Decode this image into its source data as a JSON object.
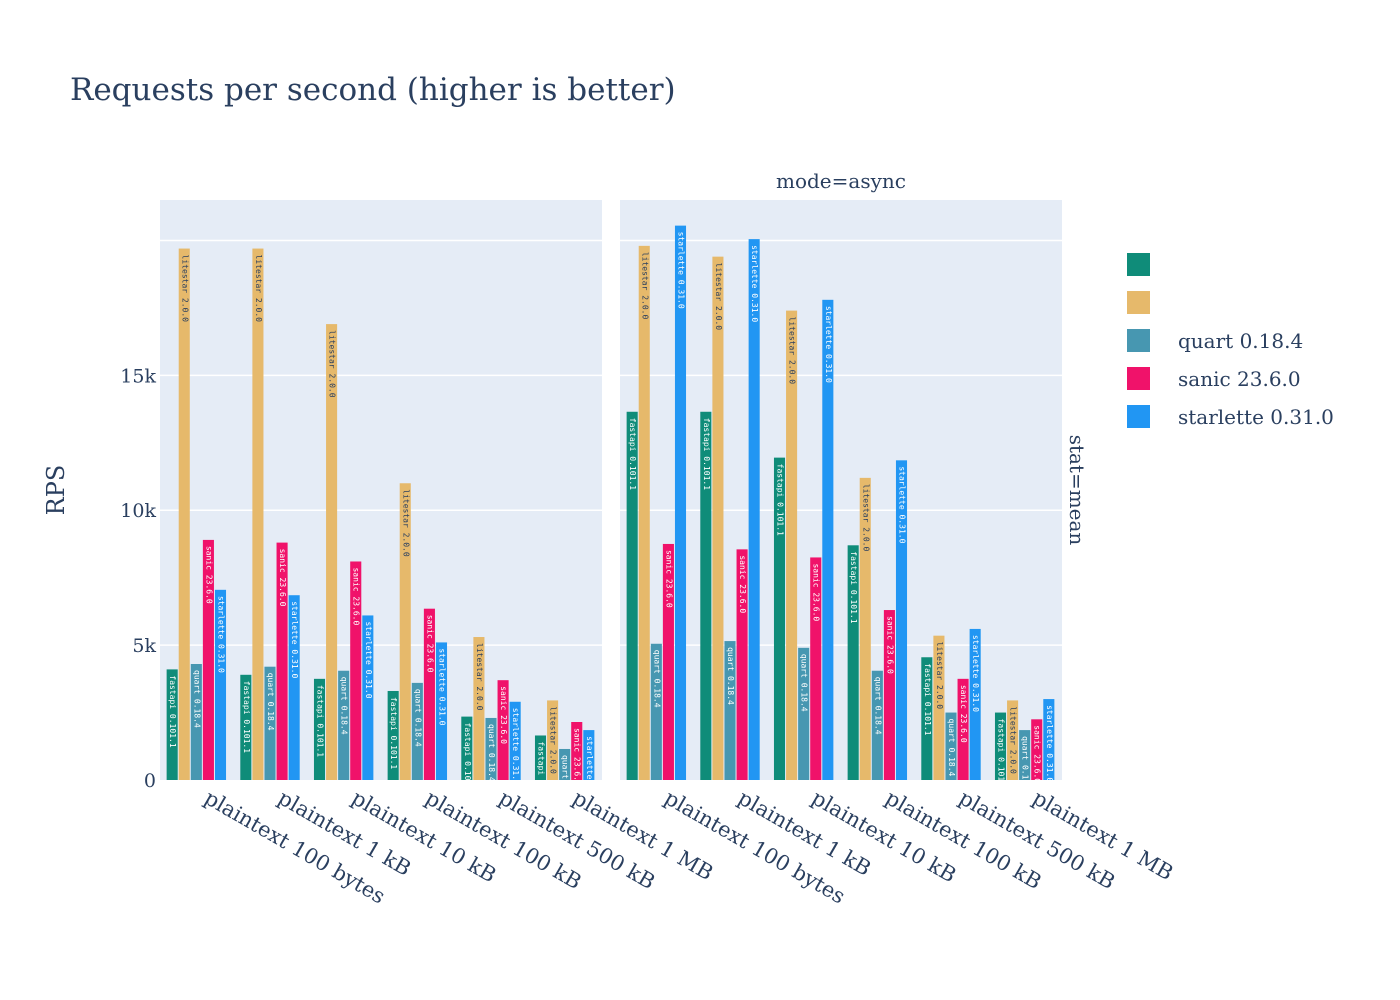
{
  "chart_data": {
    "type": "bar",
    "title": "Requests per second (higher is better)",
    "ylabel": "RPS",
    "xlabel": "",
    "ylim": [
      0,
      21500
    ],
    "yticks": [
      {
        "value": 0,
        "label": "0"
      },
      {
        "value": 5000,
        "label": "5k"
      },
      {
        "value": 10000,
        "label": "10k"
      },
      {
        "value": 15000,
        "label": "15k"
      }
    ],
    "row_facet": "stat=mean",
    "legend_position": "right",
    "series": [
      {
        "name": "fastapi 0.101.1",
        "color": "#0f8c79"
      },
      {
        "name": "litestar 2.0.0",
        "color": "#e6b96b"
      },
      {
        "name": "quart 0.18.4",
        "color": "#4797b1"
      },
      {
        "name": "sanic 23.6.0",
        "color": "#f0126a"
      },
      {
        "name": "starlette 0.31.0",
        "color": "#2196f3"
      }
    ],
    "legend_labels": [
      "",
      "",
      "quart 0.18.4",
      "sanic 23.6.0",
      "starlette 0.31.0"
    ],
    "facets": [
      {
        "title": "",
        "categories": [
          "plaintext 100 bytes",
          "plaintext 1 kB",
          "plaintext 10 kB",
          "plaintext 100 kB",
          "plaintext 500 kB",
          "plaintext 1 MB"
        ],
        "values": [
          [
            4100,
            19700,
            4300,
            8900,
            7050
          ],
          [
            3900,
            19700,
            4200,
            8800,
            6850
          ],
          [
            3750,
            16900,
            4050,
            8100,
            6100
          ],
          [
            3300,
            11000,
            3600,
            6350,
            5100
          ],
          [
            2350,
            5300,
            2300,
            3700,
            2900
          ],
          [
            1650,
            2950,
            1150,
            2150,
            1850
          ]
        ]
      },
      {
        "title": "mode=async",
        "categories": [
          "plaintext 100 bytes",
          "plaintext 1 kB",
          "plaintext 10 kB",
          "plaintext 100 kB",
          "plaintext 500 kB",
          "plaintext 1 MB"
        ],
        "values": [
          [
            13650,
            19800,
            5050,
            8750,
            20550
          ],
          [
            13650,
            19400,
            5150,
            8550,
            20050
          ],
          [
            11950,
            17400,
            4900,
            8250,
            17800
          ],
          [
            8700,
            11200,
            4050,
            6300,
            11850
          ],
          [
            4550,
            5350,
            2500,
            3750,
            5600
          ],
          [
            2500,
            2950,
            1850,
            2250,
            3000
          ]
        ]
      }
    ]
  }
}
